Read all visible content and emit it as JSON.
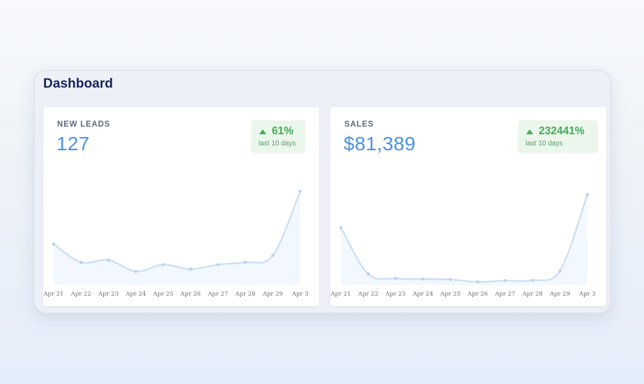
{
  "dashboard": {
    "title": "Dashboard"
  },
  "cards": [
    {
      "label": "NEW LEADS",
      "value": "127",
      "change": "61%",
      "period": "last 10 days"
    },
    {
      "label": "SALES",
      "value": "$81,389",
      "change": "232441%",
      "period": "last 10 days"
    }
  ],
  "colors": {
    "accent": "#4a92e6",
    "line": "#c9ddf5",
    "positive": "#3fae54",
    "positive_bg": "#ebf6ec",
    "title": "#17245a"
  },
  "chart_data": [
    {
      "type": "line",
      "x": [
        "Apr 21",
        "Apr 22",
        "Apr 23",
        "Apr 24",
        "Apr 25",
        "Apr 26",
        "Apr 27",
        "Apr 28",
        "Apr 29",
        "Apr 3"
      ],
      "series": [
        {
          "values": [
            18,
            10,
            11,
            6,
            9,
            7,
            9,
            10,
            13,
            41
          ]
        }
      ],
      "ylim": [
        0,
        45
      ],
      "grid": false
    },
    {
      "type": "line",
      "x": [
        "Apr 21",
        "Apr 22",
        "Apr 23",
        "Apr 24",
        "Apr 25",
        "Apr 26",
        "Apr 27",
        "Apr 28",
        "Apr 29",
        "Apr 3"
      ],
      "series": [
        {
          "values": [
            5600,
            1100,
            650,
            600,
            560,
            320,
            450,
            470,
            1400,
            8800
          ]
        }
      ],
      "ylim": [
        0,
        10000
      ],
      "grid": false
    }
  ]
}
